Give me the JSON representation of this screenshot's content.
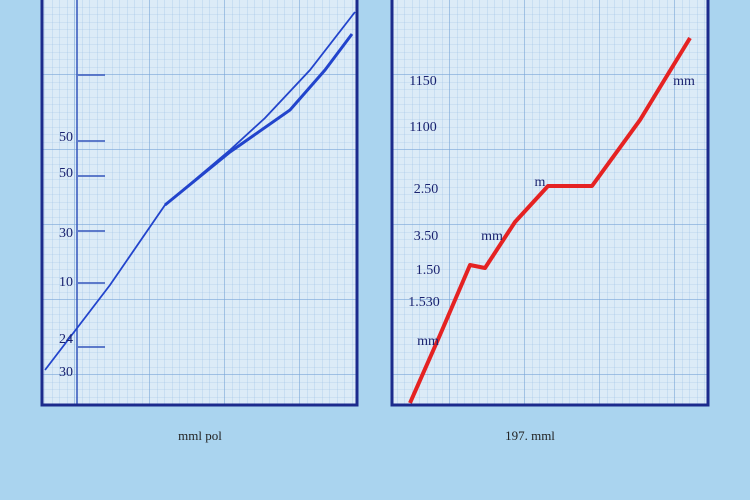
{
  "panels": [
    {
      "labels": [
        "50",
        "50",
        "30",
        "10",
        "24",
        "30"
      ],
      "caption": "mml pol"
    },
    {
      "labels": [
        "1150",
        "1100",
        "2.50",
        "3.50",
        "1.50",
        "1.530",
        "mm",
        "mm",
        "mm",
        "m"
      ],
      "caption": "197. mml"
    }
  ]
}
